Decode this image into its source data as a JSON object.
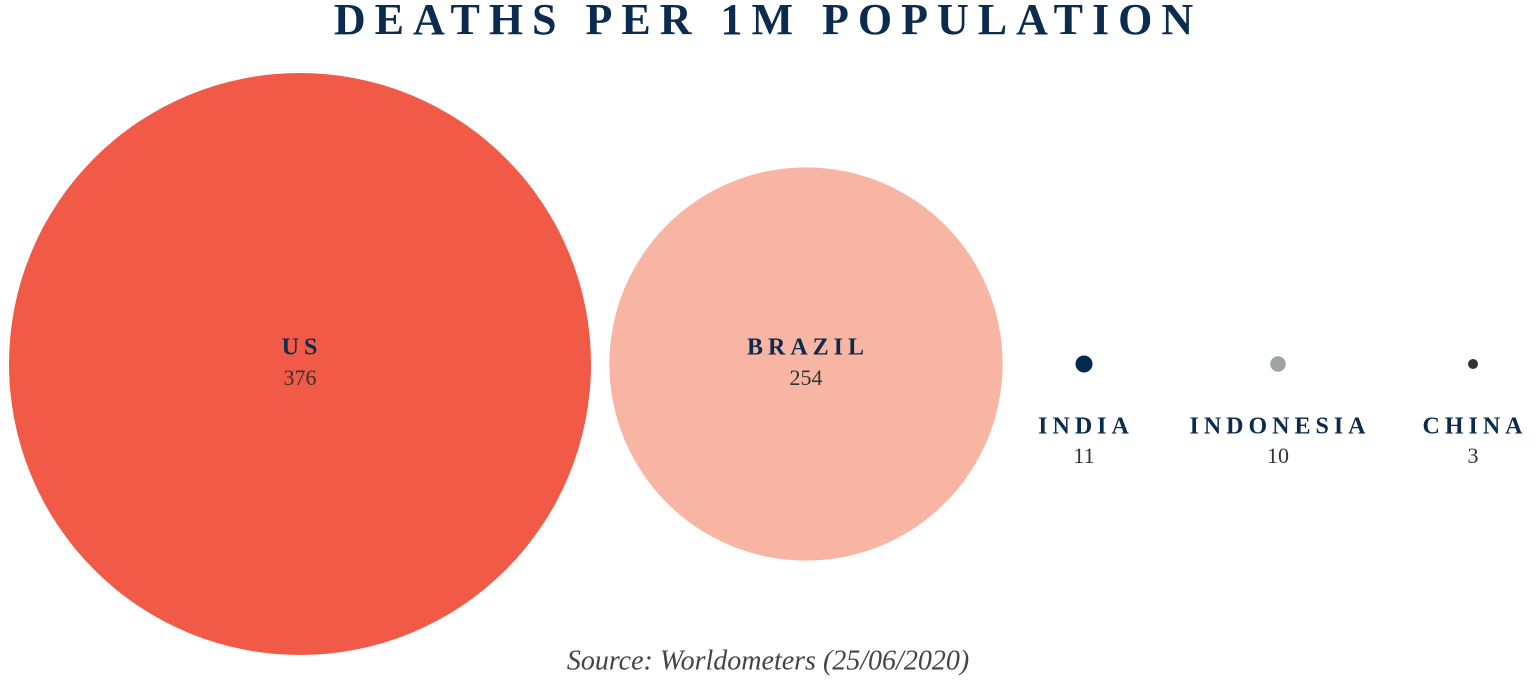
{
  "chart_data": {
    "type": "bubble",
    "title": "DEATHS PER 1M POPULATION",
    "categories": [
      "US",
      "BRAZIL",
      "INDIA",
      "INDONESIA",
      "CHINA"
    ],
    "values": [
      376,
      254,
      11,
      10,
      3
    ],
    "colors": [
      "#f05a46",
      "#f8b5a3",
      "#002a4e",
      "#9fa3a4",
      "#333333"
    ],
    "source": "Source: Worldometers (25/06/2020)"
  }
}
